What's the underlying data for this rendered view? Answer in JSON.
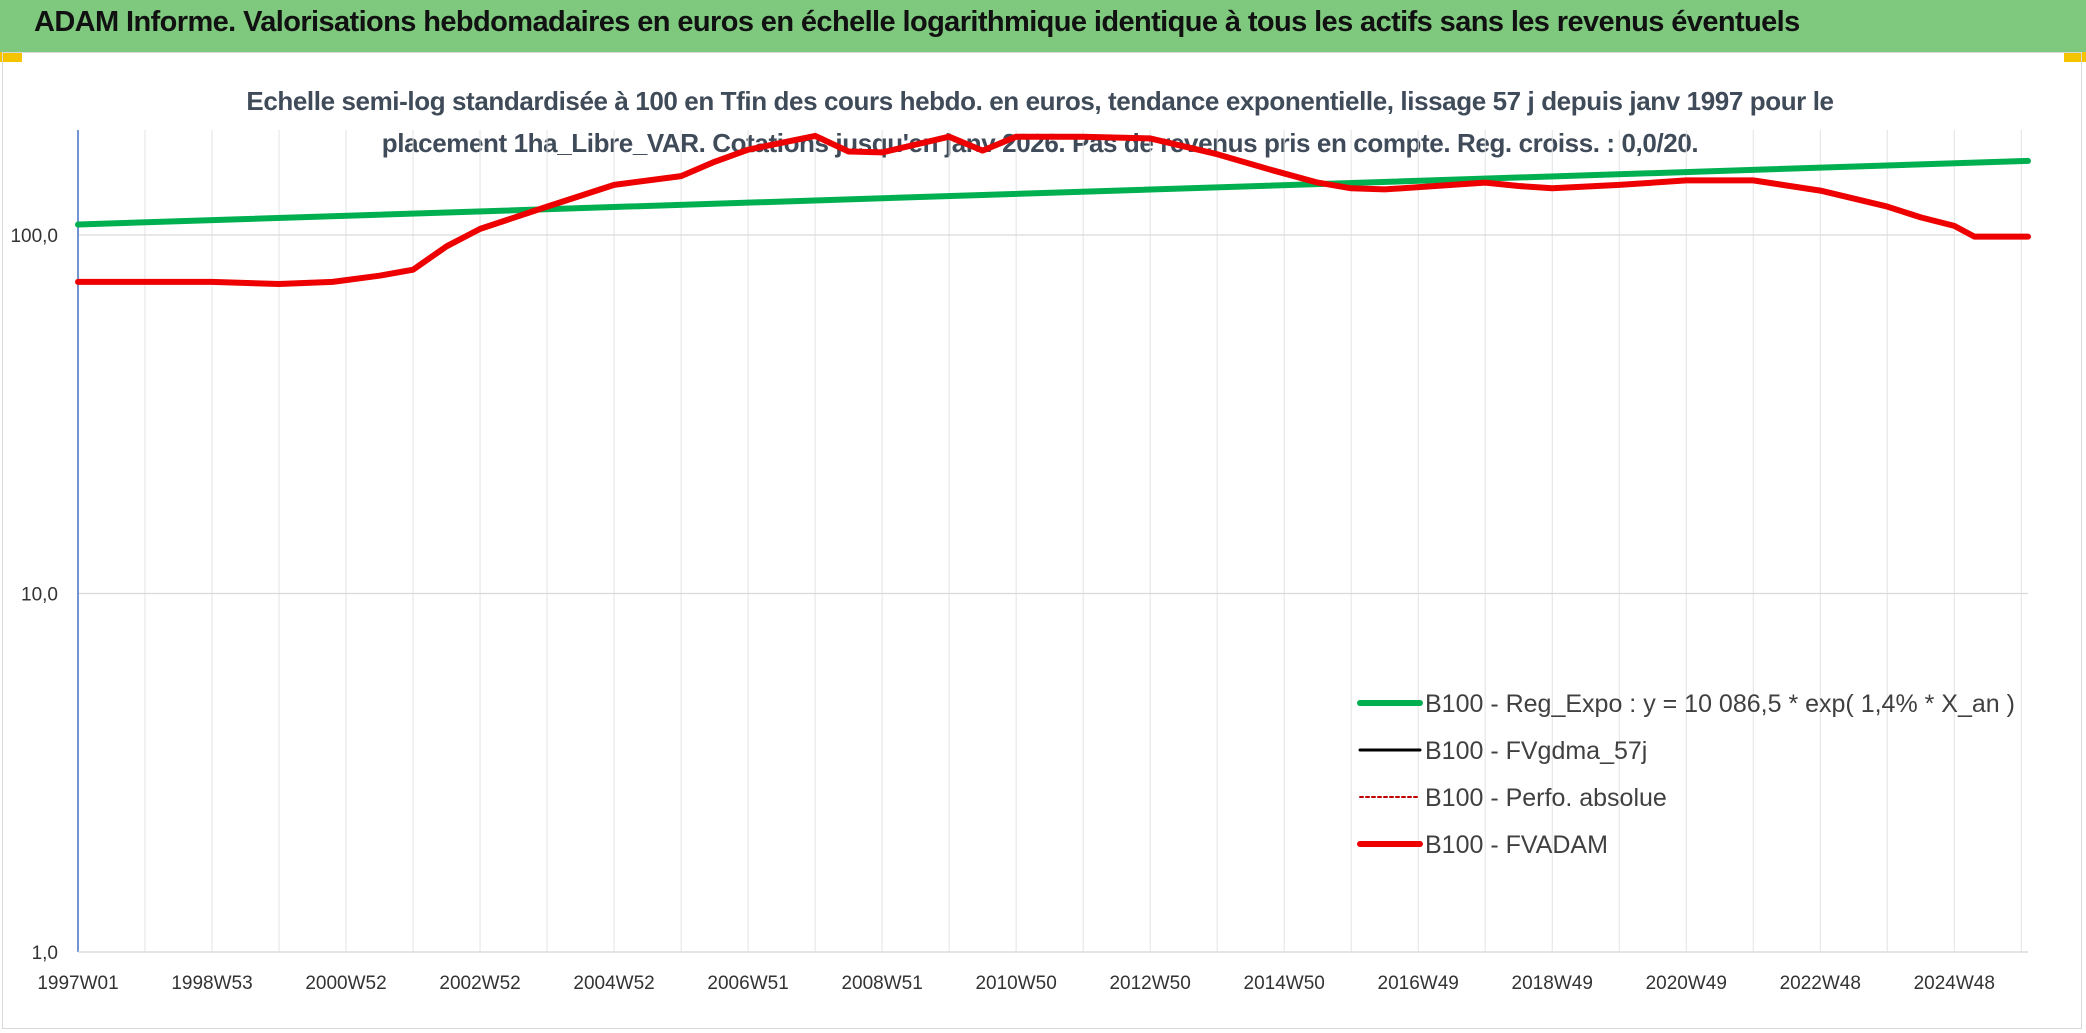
{
  "header": {
    "title": "ADAM Informe. Valorisations hebdomadaires en euros en échelle logarithmique identique à tous les actifs sans les revenus éventuels"
  },
  "colors": {
    "banner": "#7fc97f",
    "trend": "#00b050",
    "fvgdma": "#000000",
    "perfo": "#c00000",
    "fvadam": "#ee0000",
    "corner": "#f5c400"
  },
  "chart_data": {
    "type": "line",
    "title_line1": "Echelle semi-log standardisée à 100 en Tfin des cours hebdo. en euros, tendance exponentielle, lissage 57 j depuis janv 1997 pour le",
    "title_line2": "placement 1ha_Libre_VAR. Cotations jusqu'en janv 2026. Pas de revenus pris en compte. Reg. croiss. : 0,0/20.",
    "y_scale": "log",
    "ylim": [
      1,
      200
    ],
    "y_ticks": [
      {
        "value": 1,
        "label": "1,0"
      },
      {
        "value": 10,
        "label": "10,0"
      },
      {
        "value": 100,
        "label": "100,0"
      }
    ],
    "x_start": 1997.0,
    "x_end": 2026.1,
    "x_ticks": [
      {
        "x": 1997.0,
        "label": "1997W01"
      },
      {
        "x": 1999.0,
        "label": "1998W53"
      },
      {
        "x": 2001.0,
        "label": "2000W52"
      },
      {
        "x": 2003.0,
        "label": "2002W52"
      },
      {
        "x": 2005.0,
        "label": "2004W52"
      },
      {
        "x": 2007.0,
        "label": "2006W51"
      },
      {
        "x": 2009.0,
        "label": "2008W51"
      },
      {
        "x": 2011.0,
        "label": "2010W50"
      },
      {
        "x": 2013.0,
        "label": "2012W50"
      },
      {
        "x": 2015.0,
        "label": "2014W50"
      },
      {
        "x": 2017.0,
        "label": "2016W49"
      },
      {
        "x": 2019.0,
        "label": "2018W49"
      },
      {
        "x": 2021.0,
        "label": "2020W49"
      },
      {
        "x": 2023.0,
        "label": "2022W48"
      },
      {
        "x": 2025.0,
        "label": "2024W48"
      }
    ],
    "legend_position": "bottom-right",
    "series": [
      {
        "name": "B100 - Reg_Expo : y = 10 086,5 * exp( 1,4% *  X_an )",
        "style": "trend",
        "x": [
          1997.0,
          2026.1
        ],
        "y": [
          107,
          161
        ]
      },
      {
        "name": "B100 - FVgdma_57j",
        "style": "fvgdma",
        "x": [],
        "y": []
      },
      {
        "name": "B100 - Perfo. absolue",
        "style": "perfo",
        "x": [],
        "y": []
      },
      {
        "name": "B100 - FVADAM",
        "style": "fvadam",
        "x": [
          1997.0,
          1998.0,
          1999.0,
          2000.0,
          2000.8,
          2001.5,
          2002.0,
          2002.5,
          2003.0,
          2004.0,
          2005.0,
          2006.0,
          2006.5,
          2007.0,
          2008.0,
          2008.5,
          2009.0,
          2010.0,
          2010.5,
          2011.0,
          2012.0,
          2013.0,
          2014.0,
          2014.8,
          2015.5,
          2016.0,
          2016.5,
          2017.5,
          2018.0,
          2018.5,
          2019.0,
          2020.0,
          2021.0,
          2022.0,
          2023.0,
          2024.0,
          2024.5,
          2025.0,
          2025.3,
          2026.1
        ],
        "y": [
          74,
          74,
          74,
          73,
          74,
          77,
          80,
          93,
          104,
          120,
          138,
          146,
          160,
          173,
          189,
          171,
          170,
          188,
          172,
          188,
          188,
          186,
          168,
          152,
          140,
          135,
          134,
          138,
          140,
          137,
          135,
          138,
          142,
          142,
          133,
          120,
          112,
          106,
          99,
          99
        ]
      }
    ]
  },
  "legend": [
    {
      "label": "B100 - Reg_Expo : y = 10 086,5 * exp( 1,4% *  X_an )",
      "style": "trend"
    },
    {
      "label": "B100 - FVgdma_57j",
      "style": "fvgdma"
    },
    {
      "label": "B100 - Perfo. absolue",
      "style": "perfo"
    },
    {
      "label": "B100 - FVADAM",
      "style": "fvadam"
    }
  ]
}
